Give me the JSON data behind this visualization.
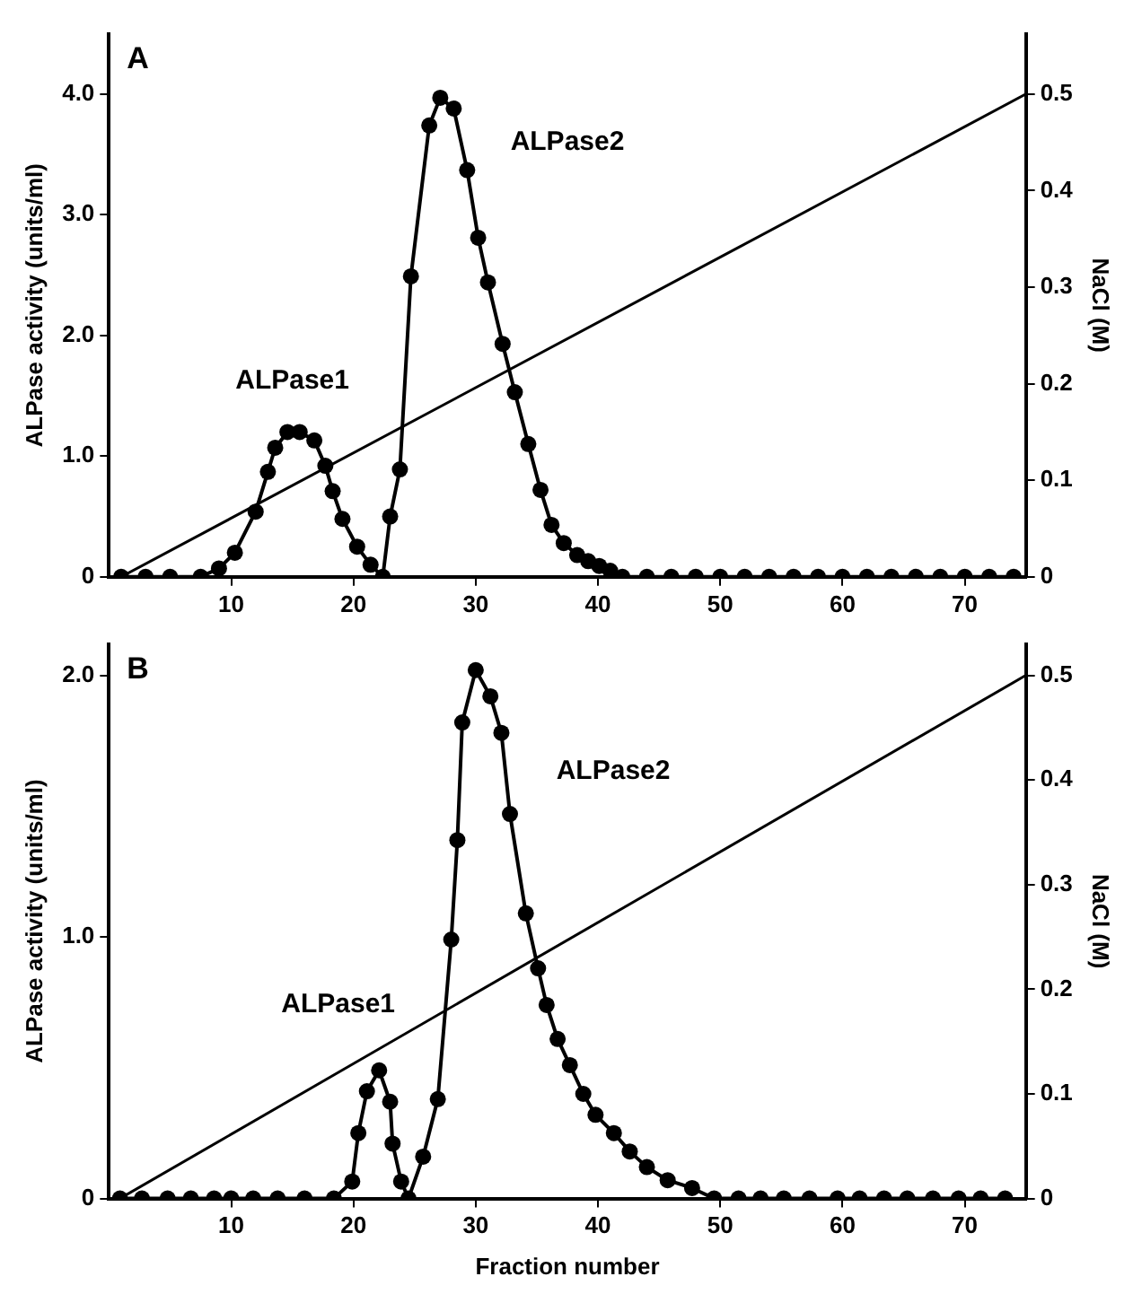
{
  "chart_data": [
    {
      "type": "line",
      "title": "A",
      "ylabel": "ALPase activity (units/ml)",
      "y2label": "NaCl (M)",
      "xlim": [
        0,
        75
      ],
      "xticks": [
        10,
        20,
        30,
        40,
        50,
        60,
        70
      ],
      "ylim": [
        0,
        4.5
      ],
      "yticks": [
        {
          "value": 0,
          "label": "0"
        },
        {
          "value": 1,
          "label": "1.0"
        },
        {
          "value": 2,
          "label": "2.0"
        },
        {
          "value": 3,
          "label": "3.0"
        },
        {
          "value": 4,
          "label": "4.0"
        }
      ],
      "y2lim": [
        0,
        0.5625
      ],
      "y2ticks": [
        0,
        0.1,
        0.2,
        0.3,
        0.4,
        0.5
      ],
      "line_style": "solid",
      "series": [
        {
          "color": "#000000",
          "marker": "circle",
          "x": [
            1,
            3,
            5,
            7.5,
            9,
            10.3,
            12,
            13,
            13.6,
            14.6,
            15.6,
            16.8,
            17.7,
            18.3,
            19.1,
            20.3,
            21.4,
            22.4,
            23,
            23.8,
            24.7,
            26.2,
            27.1,
            28.2,
            29.3,
            30.2,
            31,
            32.2,
            33.2,
            34.3,
            35.3,
            36.2,
            37.2,
            38.3,
            39.2,
            40.1,
            41,
            42,
            44,
            46,
            48,
            50,
            52,
            54,
            56,
            58,
            60,
            62,
            64,
            66,
            68,
            70,
            72,
            74
          ],
          "values": [
            0,
            0,
            0,
            0,
            0.07,
            0.2,
            0.54,
            0.87,
            1.07,
            1.2,
            1.2,
            1.13,
            0.92,
            0.71,
            0.48,
            0.25,
            0.1,
            0,
            0.5,
            0.89,
            2.49,
            3.74,
            3.97,
            3.88,
            3.37,
            2.81,
            2.44,
            1.93,
            1.53,
            1.1,
            0.72,
            0.43,
            0.28,
            0.18,
            0.13,
            0.09,
            0.05,
            0,
            0,
            0,
            0,
            0,
            0,
            0,
            0,
            0,
            0,
            0,
            0,
            0,
            0,
            0,
            0,
            0
          ]
        },
        {
          "color": "#000000",
          "axis": "y2",
          "x": [
            1,
            75
          ],
          "values": [
            0,
            0.5
          ]
        }
      ],
      "annotations": [
        "ALPase1",
        "ALPase2"
      ]
    },
    {
      "type": "line",
      "title": "B",
      "xlabel": "Fraction number",
      "ylabel": "ALPase activity (units/ml)",
      "y2label": "NaCl (M)",
      "xlim": [
        0,
        75
      ],
      "xticks": [
        10,
        20,
        30,
        40,
        50,
        60,
        70
      ],
      "ylim": [
        0,
        2.12
      ],
      "yticks": [
        {
          "value": 0,
          "label": "0"
        },
        {
          "value": 1,
          "label": "1.0"
        },
        {
          "value": 2,
          "label": "2.0"
        }
      ],
      "y2lim": [
        0,
        0.53
      ],
      "y2ticks": [
        0,
        0.1,
        0.2,
        0.3,
        0.4,
        0.5
      ],
      "line_style": "solid",
      "series": [
        {
          "color": "#000000",
          "marker": "circle",
          "x": [
            0.9,
            2.7,
            4.8,
            6.7,
            8.6,
            10,
            11.8,
            13.8,
            16,
            18.4,
            19.9,
            20.4,
            21.1,
            22.1,
            23,
            23.2,
            23.9,
            24.5,
            25.7,
            26.9,
            28,
            28.5,
            28.9,
            30,
            31.2,
            32.1,
            32.8,
            34.1,
            35.1,
            35.8,
            36.7,
            37.7,
            38.8,
            39.8,
            41.3,
            42.6,
            44,
            45.7,
            47.7,
            49.5,
            51.5,
            53.3,
            55.2,
            57.3,
            59.6,
            61.4,
            63.4,
            65.3,
            67.4,
            69.5,
            71.3,
            73.3
          ],
          "values": [
            0,
            0,
            0,
            0,
            0,
            0,
            0,
            0,
            0,
            0,
            0.065,
            0.25,
            0.41,
            0.49,
            0.37,
            0.21,
            0.065,
            0,
            0.16,
            0.38,
            0.99,
            1.37,
            1.82,
            2.02,
            1.92,
            1.78,
            1.47,
            1.09,
            0.88,
            0.74,
            0.61,
            0.51,
            0.4,
            0.32,
            0.25,
            0.18,
            0.12,
            0.07,
            0.04,
            0,
            0,
            0,
            0,
            0,
            0,
            0,
            0,
            0,
            0,
            0,
            0,
            0
          ]
        },
        {
          "color": "#000000",
          "axis": "y2",
          "x": [
            0.9,
            75
          ],
          "values": [
            0,
            0.5
          ]
        }
      ],
      "annotations": [
        "ALPase1",
        "ALPase2"
      ]
    }
  ]
}
